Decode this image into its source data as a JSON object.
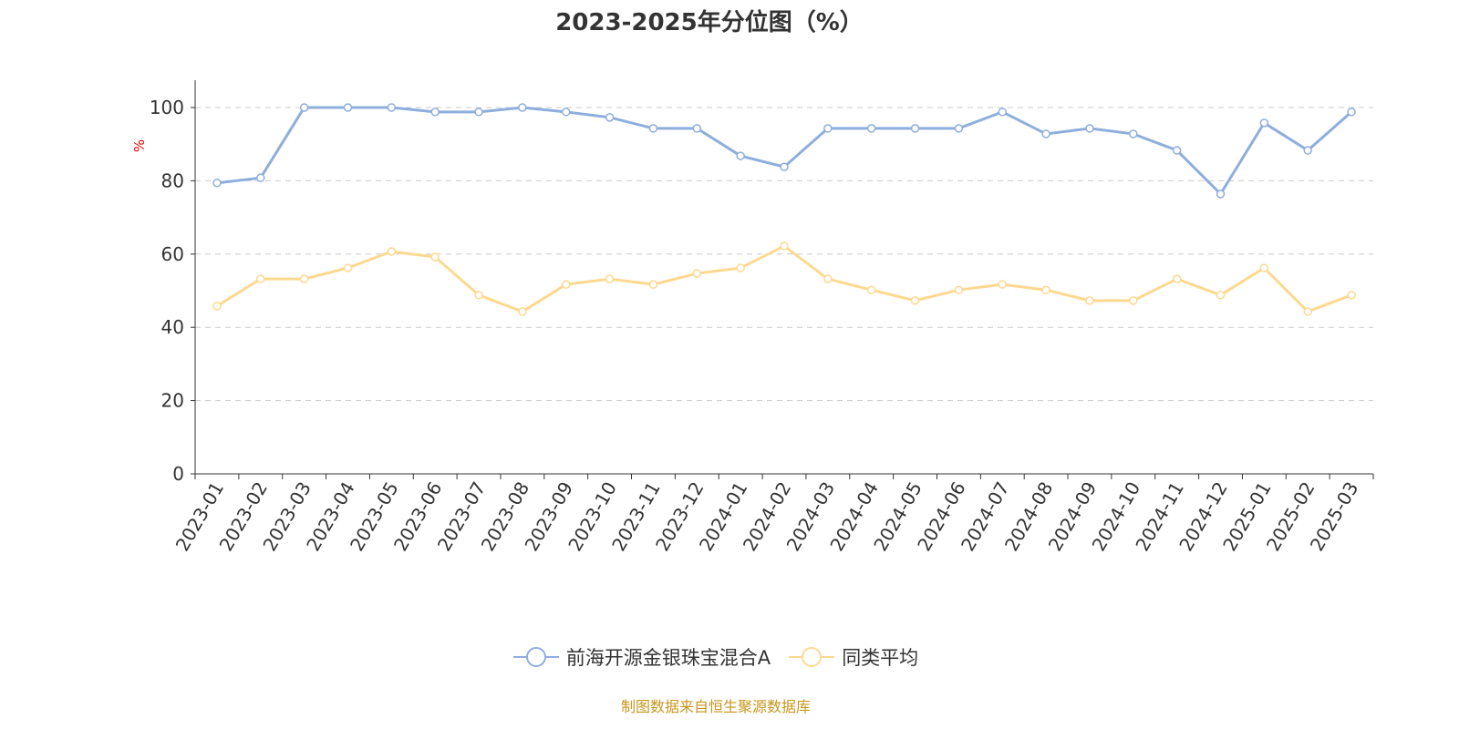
{
  "chart_data": {
    "type": "line",
    "title": "2023-2025年分位图（%）",
    "ylabel": "%",
    "xlabel": "",
    "ylim": [
      0,
      100
    ],
    "yticks": [
      0,
      20,
      40,
      60,
      80,
      100
    ],
    "grid": true,
    "legend_position": "bottom",
    "categories": [
      "2023-01",
      "2023-02",
      "2023-03",
      "2023-04",
      "2023-05",
      "2023-06",
      "2023-07",
      "2023-08",
      "2023-09",
      "2023-10",
      "2023-11",
      "2023-12",
      "2024-01",
      "2024-02",
      "2024-03",
      "2024-04",
      "2024-05",
      "2024-06",
      "2024-07",
      "2024-08",
      "2024-09",
      "2024-10",
      "2024-11",
      "2024-12",
      "2025-01",
      "2025-02",
      "2025-03"
    ],
    "series": [
      {
        "name": "前海开源金银珠宝混合A",
        "color": "#8eaedc",
        "values": [
          79.4,
          80.8,
          100,
          100,
          100,
          98.8,
          98.8,
          100,
          98.8,
          97.3,
          94.3,
          94.3,
          86.8,
          83.8,
          94.3,
          94.3,
          94.3,
          94.3,
          98.8,
          92.8,
          94.3,
          92.8,
          88.3,
          76.4,
          95.8,
          88.3,
          98.8
        ]
      },
      {
        "name": "同类平均",
        "color": "#fdd98f",
        "values": [
          45.8,
          53.2,
          53.2,
          56.2,
          60.7,
          59.2,
          48.8,
          44.3,
          51.7,
          53.2,
          51.7,
          54.7,
          56.2,
          62.2,
          53.2,
          50.2,
          47.3,
          50.2,
          51.7,
          50.2,
          47.3,
          47.3,
          53.2,
          48.8,
          56.2,
          44.3,
          48.8
        ]
      }
    ]
  },
  "source": "制图数据来自恒生聚源数据库"
}
